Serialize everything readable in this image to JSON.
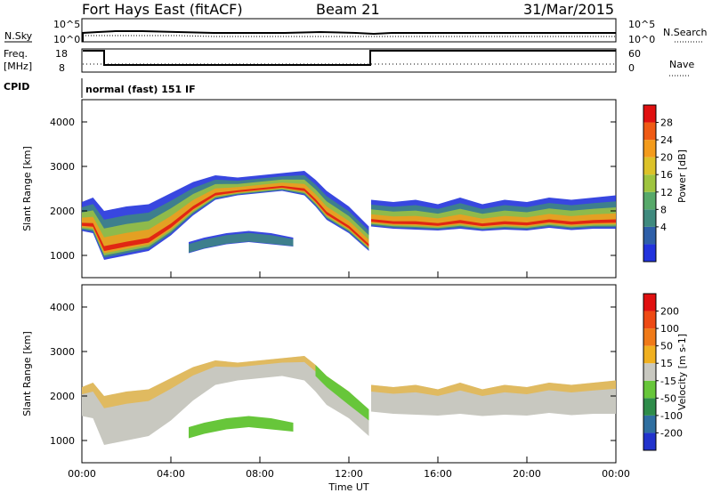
{
  "header": {
    "station": "Fort Hays East (fitACF)",
    "beam": "Beam 21",
    "date": "31/Mar/2015"
  },
  "status_panels": {
    "nsky_label": "N.Sky",
    "nsky_ticks": [
      "10^5",
      "10^0"
    ],
    "nsearch_label": "N.Search",
    "freq_label": "Freq.",
    "freq_unit": "[MHz]",
    "freq_ticks": [
      "18",
      "8"
    ],
    "nave_ticks": [
      "60",
      "0"
    ],
    "nave_label": "Nave",
    "cpid_label": "CPID",
    "cpid_text": "normal (fast) 151 IF"
  },
  "chart_data": [
    {
      "type": "heatmap",
      "panel": "power",
      "ylabel": "Slant Range [km]",
      "yticks": [
        "4000",
        "3000",
        "2000",
        "1000"
      ],
      "ylim": [
        500,
        4500
      ],
      "colorbar_label": "Power [dB]",
      "colorbar_ticks": [
        "28",
        "24",
        "20",
        "16",
        "12",
        "8",
        "4"
      ],
      "colorbar_colors": [
        "#2233dd",
        "#2e5fa8",
        "#3f8a7e",
        "#57a96a",
        "#9ec43f",
        "#dcc229",
        "#f39b1c",
        "#ef5a14",
        "#e01010"
      ],
      "echo_bands": [
        {
          "x": [
            0.0,
            0.5,
            1.0,
            1.5,
            2.0,
            3.0,
            4.0,
            5.0,
            6.0,
            7.0,
            8.0,
            9.0,
            10.0,
            10.5,
            11.0,
            12.0,
            12.9
          ],
          "ylow": [
            1550,
            1500,
            900,
            950,
            1000,
            1100,
            1450,
            1900,
            2250,
            2350,
            2400,
            2450,
            2350,
            2100,
            1800,
            1500,
            1100
          ],
          "yhigh": [
            2200,
            2300,
            2000,
            2050,
            2100,
            2150,
            2400,
            2650,
            2800,
            2750,
            2800,
            2850,
            2900,
            2700,
            2450,
            2100,
            1650
          ]
        },
        {
          "x": [
            13.0,
            14.0,
            15.0,
            16.0,
            17.0,
            18.0,
            19.0,
            20.0,
            21.0,
            22.0,
            23.0,
            24.0
          ],
          "ylow": [
            1650,
            1600,
            1580,
            1560,
            1600,
            1550,
            1580,
            1560,
            1620,
            1570,
            1600,
            1600
          ],
          "yhigh": [
            2250,
            2200,
            2250,
            2150,
            2300,
            2150,
            2250,
            2200,
            2300,
            2250,
            2300,
            2350
          ]
        },
        {
          "x": [
            4.8,
            5.5,
            6.5,
            7.5,
            8.5,
            9.5
          ],
          "ylow": [
            1050,
            1150,
            1250,
            1300,
            1250,
            1200
          ],
          "yhigh": [
            1300,
            1400,
            1500,
            1550,
            1500,
            1400
          ]
        }
      ]
    },
    {
      "type": "heatmap",
      "panel": "velocity",
      "ylabel": "Slant Range [km]",
      "yticks": [
        "4000",
        "3000",
        "2000",
        "1000"
      ],
      "ylim": [
        500,
        4500
      ],
      "colorbar_label": "Velocity [m s-1]",
      "colorbar_ticks": [
        "200",
        "100",
        "50",
        "15",
        "-15",
        "-50",
        "-100",
        "-200"
      ],
      "colorbar_colors": [
        "#2233cc",
        "#2f6fa0",
        "#2e8c4a",
        "#67c63a",
        "#c8c8c0",
        "#f0b020",
        "#f07a18",
        "#ee4a14",
        "#e01010"
      ],
      "green_feature": {
        "x": [
          4.8,
          5.5,
          6.5,
          7.5,
          8.5,
          9.5
        ],
        "ylow": [
          1050,
          1150,
          1250,
          1300,
          1250,
          1200
        ],
        "yhigh": [
          1300,
          1400,
          1500,
          1550,
          1500,
          1400
        ]
      },
      "xticks": [
        "00:00",
        "04:00",
        "08:00",
        "12:00",
        "16:00",
        "20:00",
        "00:00"
      ],
      "xlabel": "Time UT",
      "xlim": [
        0,
        24
      ]
    }
  ]
}
